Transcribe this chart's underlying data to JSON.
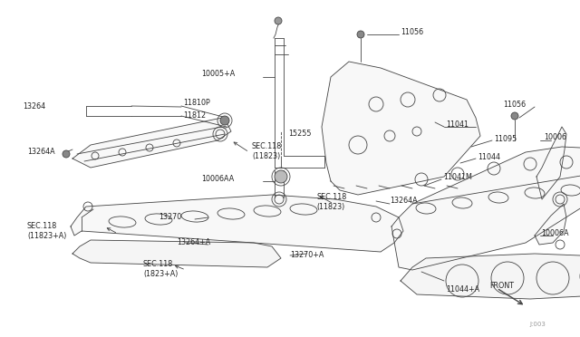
{
  "bg_color": "#ffffff",
  "line_color": "#444444",
  "text_color": "#222222",
  "ref_code": "J:003",
  "figsize": [
    6.4,
    3.72
  ],
  "dpi": 100,
  "xlim": [
    0,
    640
  ],
  "ylim": [
    0,
    372
  ]
}
